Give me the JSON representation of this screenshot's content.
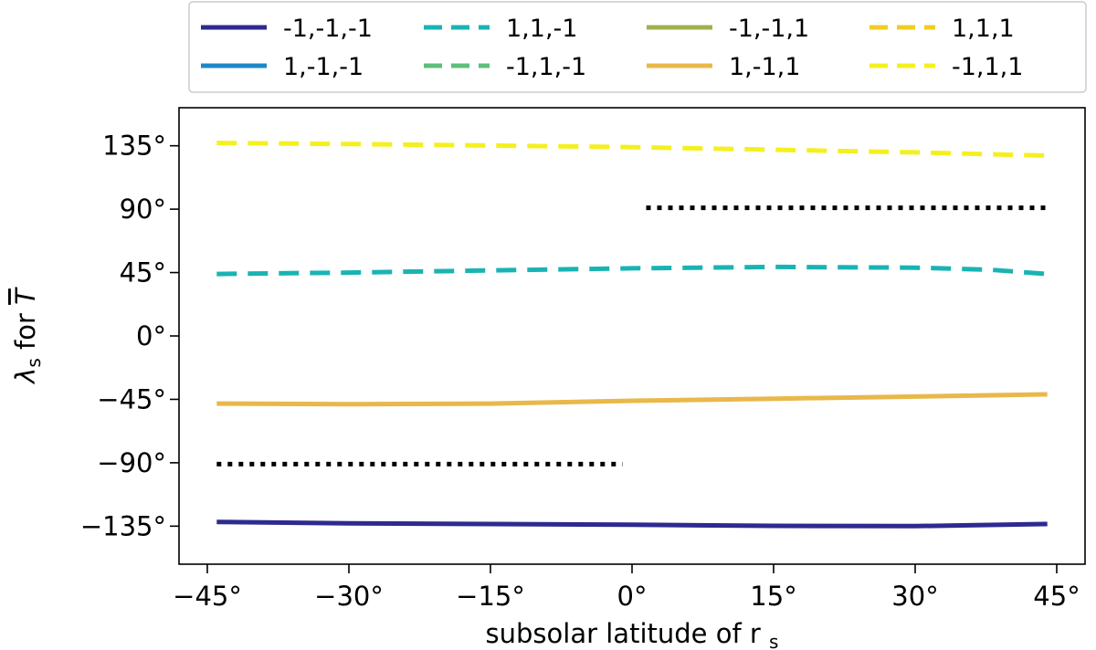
{
  "chart_data": {
    "type": "line",
    "xlabel": "subsolar latitude of r",
    "xlabel_sub": "s",
    "ylabel": "λ",
    "ylabel_sub": "s",
    "ylabel_suffix": " for ",
    "ylabel_symbol": "T",
    "xlim": [
      -48,
      48
    ],
    "ylim": [
      -162,
      162
    ],
    "xticks": [
      -45,
      -30,
      -15,
      0,
      15,
      30,
      45
    ],
    "xtick_labels": [
      "−45°",
      "−30°",
      "−15°",
      "0°",
      "15°",
      "30°",
      "45°"
    ],
    "yticks": [
      -135,
      -90,
      -45,
      0,
      45,
      90,
      135
    ],
    "ytick_labels": [
      "−135°",
      "−90°",
      "−45°",
      "0°",
      "45°",
      "90°",
      "135°"
    ],
    "grid": false,
    "legend_position": "top",
    "legend_columns": 4,
    "series": [
      {
        "name": "-1,-1,-1",
        "color": "#2e2a8f",
        "dash": "solid",
        "x": [
          -44,
          -30,
          -15,
          0,
          15,
          30,
          44
        ],
        "y": [
          -132,
          -133,
          -133.5,
          -134,
          -134.8,
          -135,
          -133.5
        ]
      },
      {
        "name": "1,-1,-1",
        "color": "#1f86c9",
        "dash": "solid",
        "x": [],
        "y": []
      },
      {
        "name": "1,1,-1",
        "color": "#1ab3b3",
        "dash": "dashed",
        "x": [
          -44,
          -30,
          -15,
          0,
          15,
          30,
          38,
          44
        ],
        "y": [
          44,
          45,
          46.5,
          48,
          49,
          48.5,
          47,
          44
        ]
      },
      {
        "name": "-1,1,-1",
        "color": "#5cbf7a",
        "dash": "dashed",
        "x": [],
        "y": []
      },
      {
        "name": "-1,-1,1",
        "color": "#a0b04f",
        "dash": "solid",
        "x": [],
        "y": []
      },
      {
        "name": "1,-1,1",
        "color": "#e8b84a",
        "dash": "solid",
        "x": [
          -44,
          -30,
          -15,
          0,
          15,
          30,
          44
        ],
        "y": [
          -48,
          -48.5,
          -48,
          -46,
          -44.5,
          -43,
          -41.5
        ]
      },
      {
        "name": "1,1,1",
        "color": "#f0cd24",
        "dash": "dashed",
        "x": [],
        "y": []
      },
      {
        "name": "-1,1,1",
        "color": "#f4f020",
        "dash": "dashed",
        "x": [
          -44,
          -30,
          -15,
          0,
          15,
          30,
          44
        ],
        "y": [
          137,
          136.2,
          135.2,
          134,
          132.2,
          130.3,
          128
        ]
      }
    ],
    "reference_lines": [
      {
        "color": "#000000",
        "dash": "dotted",
        "x": [
          -44,
          -1
        ],
        "y": [
          -91,
          -91
        ]
      },
      {
        "color": "#000000",
        "dash": "dotted",
        "x": [
          1.5,
          44
        ],
        "y": [
          91,
          91
        ]
      }
    ]
  }
}
